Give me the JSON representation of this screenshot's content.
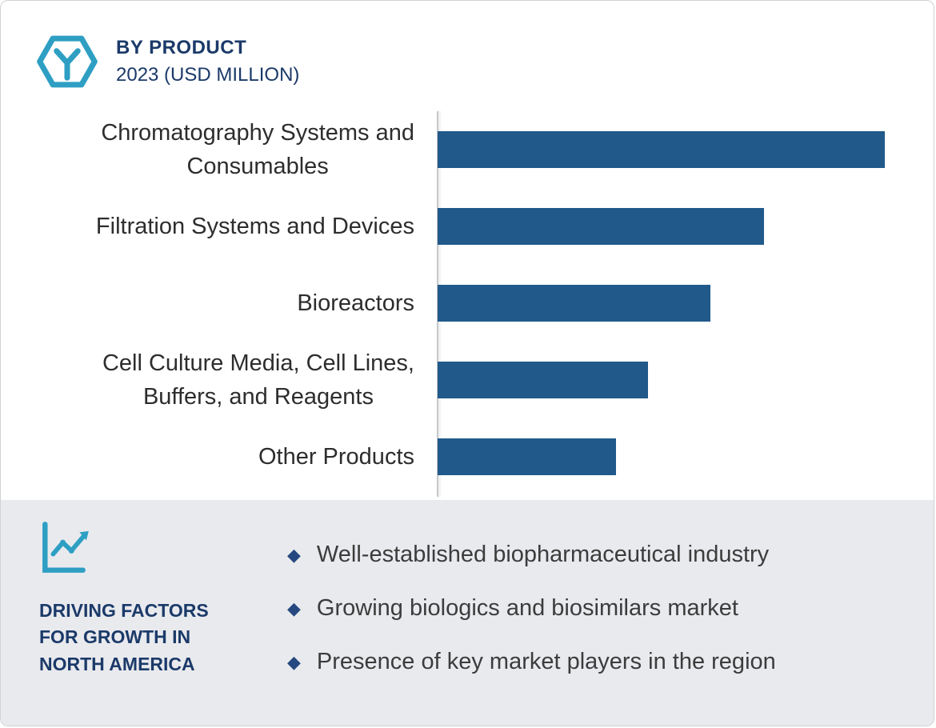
{
  "header": {
    "title": "BY PRODUCT",
    "subtitle": "2023 (USD MILLION)"
  },
  "chart_data": {
    "type": "bar",
    "orientation": "horizontal",
    "title": "BY PRODUCT 2023 (USD MILLION)",
    "categories": [
      "Chromatography Systems and\nConsumables",
      "Filtration Systems and Devices",
      "Bioreactors",
      "Cell Culture Media, Cell Lines,\nBuffers, and Reagents",
      "Other Products"
    ],
    "values": [
      100,
      73,
      61,
      47,
      40
    ],
    "units_note": "axis not labeled; values are relative estimates with longest bar = 100",
    "xlabel": "",
    "ylabel": "",
    "xlim": [
      0,
      111
    ],
    "grid": false,
    "legend": "none",
    "bar_color": "#20598a",
    "axis_color": "#c6c8ca"
  },
  "driving_factors": {
    "heading": "DRIVING FACTORS\nFOR GROWTH IN\nNORTH AMERICA",
    "items": [
      "Well-established biopharmaceutical industry",
      "Growing biologics and biosimilars market",
      "Presence of key market players in the region"
    ],
    "bullet_color": "#24487f"
  },
  "icons": {
    "product_icon": "hexagon-molecule-icon",
    "factors_icon": "line-chart-icon",
    "accent_color": "#2e9fc3"
  }
}
